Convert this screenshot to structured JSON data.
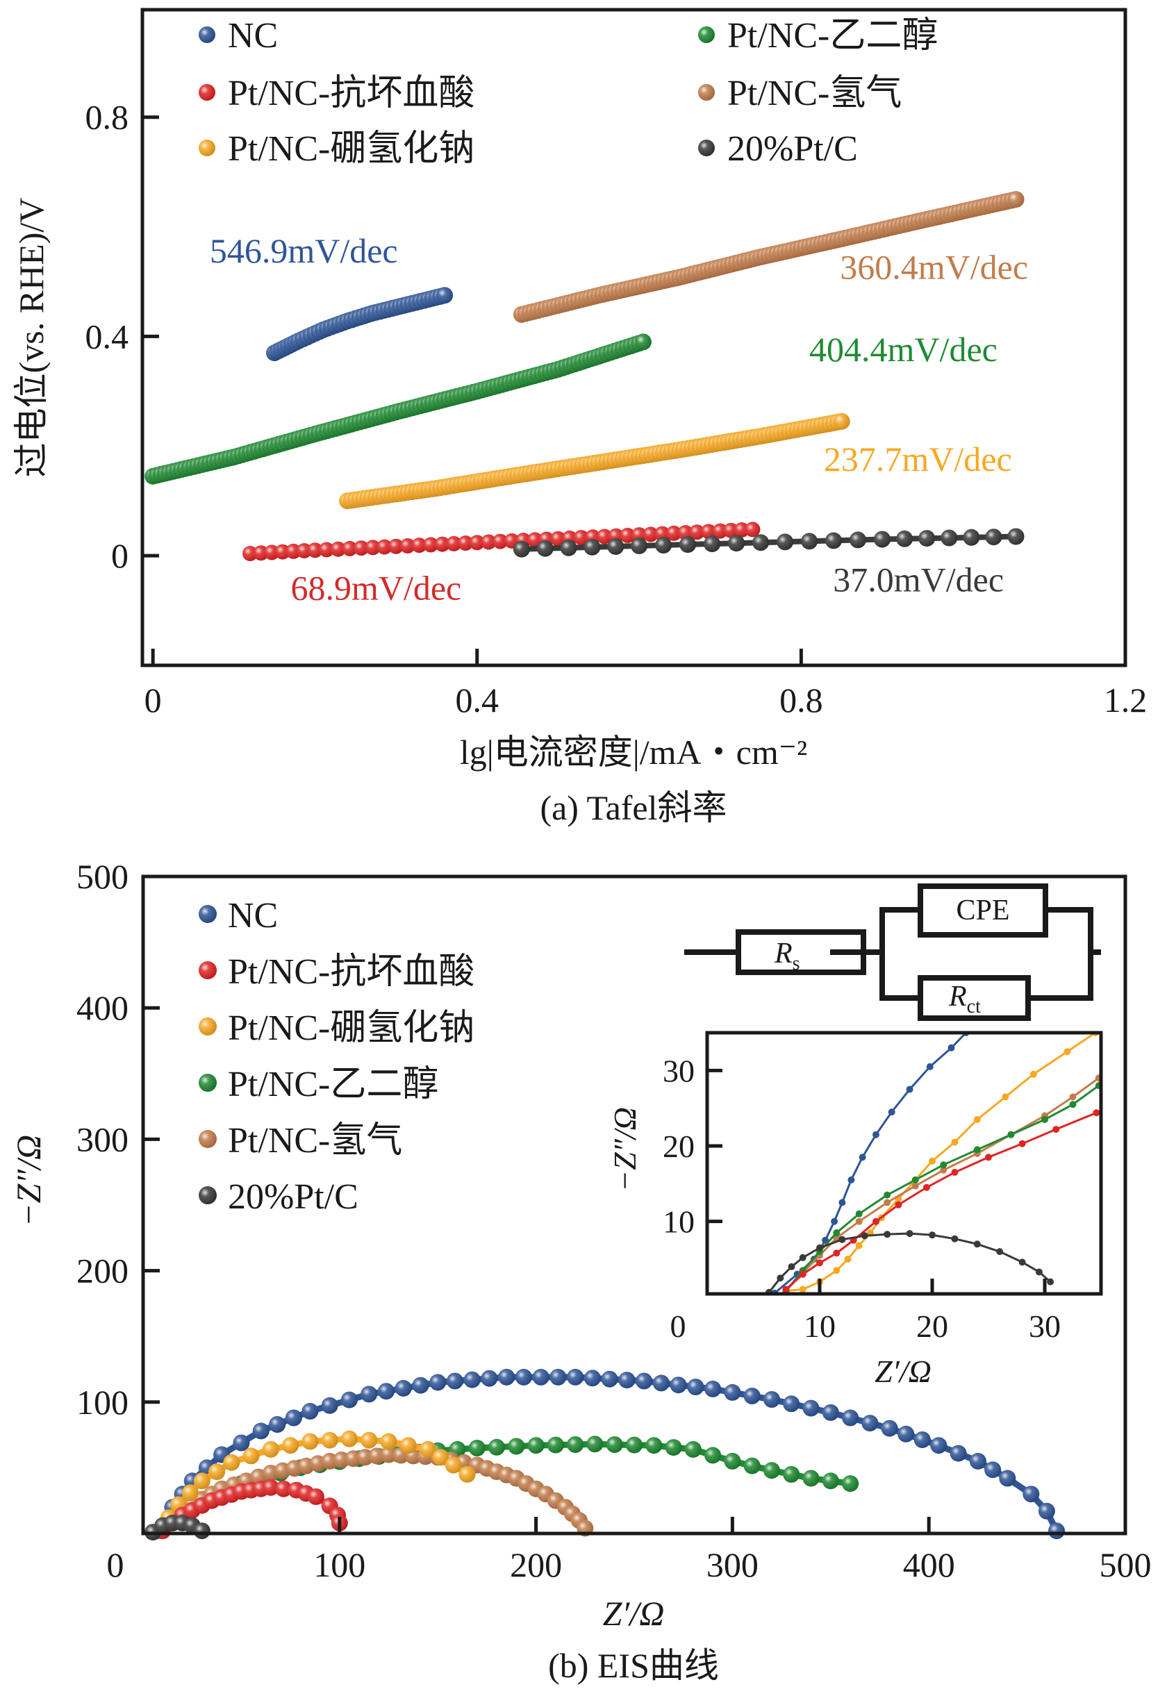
{
  "chart_data": [
    {
      "id": "tafel",
      "type": "scatter",
      "title": "",
      "caption": "(a) Tafel斜率",
      "xlabel": "lg|电流密度|/mA・cm⁻²",
      "ylabel": "过电位(vs. RHE)/V",
      "xlim": [
        -0.013,
        1.2
      ],
      "ylim": [
        -0.2,
        0.996
      ],
      "xticks": [
        0,
        0.4,
        0.8,
        1.2
      ],
      "xtick_labels": [
        "0",
        "0.4",
        "0.8",
        "1.2"
      ],
      "yticks": [
        0,
        0.4,
        0.8
      ],
      "ytick_labels": [
        "0",
        "0.4",
        "0.8"
      ],
      "grid": false,
      "legend": {
        "placement": "top",
        "columns": 2,
        "entries": [
          {
            "label": "NC",
            "color": "#2f5597"
          },
          {
            "label": "Pt/NC-抗坏血酸",
            "color": "#e02424"
          },
          {
            "label": "Pt/NC-硼氢化钠",
            "color": "#f7a823"
          },
          {
            "label": "Pt/NC-乙二醇",
            "color": "#1f8a32"
          },
          {
            "label": "Pt/NC-氢气",
            "color": "#c27c4a"
          },
          {
            "label": "20%Pt/C",
            "color": "#3a3a3a"
          }
        ]
      },
      "series": [
        {
          "name": "NC",
          "color": "#2f5597",
          "slope_label": "546.9mV/dec",
          "x": [
            0.15,
            0.18,
            0.21,
            0.24,
            0.27,
            0.3,
            0.33,
            0.36
          ],
          "y": [
            0.37,
            0.392,
            0.412,
            0.428,
            0.442,
            0.453,
            0.464,
            0.475
          ]
        },
        {
          "name": "Pt/NC-抗坏血酸",
          "color": "#e02424",
          "slope_label": "68.9mV/dec",
          "x": [
            0.12,
            0.2,
            0.3,
            0.4,
            0.5,
            0.6,
            0.7,
            0.74
          ],
          "y": [
            0.004,
            0.01,
            0.017,
            0.024,
            0.031,
            0.038,
            0.045,
            0.048
          ]
        },
        {
          "name": "Pt/NC-硼氢化钠",
          "color": "#f7a823",
          "slope_label": "237.7mV/dec",
          "x": [
            0.24,
            0.35,
            0.45,
            0.55,
            0.65,
            0.75,
            0.85
          ],
          "y": [
            0.1,
            0.123,
            0.147,
            0.17,
            0.193,
            0.218,
            0.245
          ]
        },
        {
          "name": "Pt/NC-乙二醇",
          "color": "#1f8a32",
          "slope_label": "404.4mV/dec",
          "x": [
            0.0,
            0.1,
            0.2,
            0.3,
            0.4,
            0.5,
            0.605
          ],
          "y": [
            0.145,
            0.18,
            0.222,
            0.262,
            0.3,
            0.34,
            0.39
          ]
        },
        {
          "name": "Pt/NC-氢气",
          "color": "#c27c4a",
          "slope_label": "360.4mV/dec",
          "x": [
            0.455,
            0.55,
            0.65,
            0.75,
            0.85,
            0.95,
            1.065
          ],
          "y": [
            0.44,
            0.475,
            0.508,
            0.545,
            0.578,
            0.612,
            0.65
          ]
        },
        {
          "name": "20%Pt/C",
          "color": "#3a3a3a",
          "slope_label": "37.0mV/dec",
          "x": [
            0.455,
            0.6,
            0.75,
            0.9,
            1.065
          ],
          "y": [
            0.012,
            0.018,
            0.024,
            0.03,
            0.035
          ]
        }
      ],
      "annotations": [
        {
          "text": "546.9mV/dec",
          "color": "#2f5597",
          "x": 0.07,
          "y": 0.535
        },
        {
          "text": "360.4mV/dec",
          "color": "#c27c4a",
          "x": 1.08,
          "y": 0.505
        },
        {
          "text": "404.4mV/dec",
          "color": "#1f8a32",
          "x": 0.81,
          "y": 0.355
        },
        {
          "text": "237.7mV/dec",
          "color": "#f7a823",
          "x": 1.06,
          "y": 0.155
        },
        {
          "text": "68.9mV/dec",
          "color": "#d42a2a",
          "x": 0.17,
          "y": -0.08
        },
        {
          "text": "37.0mV/dec",
          "color": "#3a3a3a",
          "x": 1.05,
          "y": -0.065
        }
      ]
    },
    {
      "id": "eis",
      "type": "scatter",
      "title": "",
      "caption": "(b) EIS曲线",
      "xlabel": "Z′/Ω",
      "ylabel": "−Z″/Ω",
      "xlim": [
        0,
        500
      ],
      "ylim": [
        0,
        500
      ],
      "xticks": [
        0,
        100,
        200,
        300,
        400,
        500
      ],
      "xtick_labels": [
        "0",
        "100",
        "200",
        "300",
        "400",
        "500"
      ],
      "yticks": [
        100,
        200,
        300,
        400,
        500
      ],
      "ytick_labels": [
        "100",
        "200",
        "300",
        "400",
        "500"
      ],
      "grid": false,
      "legend": {
        "placement": "top-left",
        "entries": [
          {
            "label": "NC",
            "color": "#2f5597"
          },
          {
            "label": "Pt/NC-抗坏血酸",
            "color": "#e02424"
          },
          {
            "label": "Pt/NC-硼氢化钠",
            "color": "#f7a823"
          },
          {
            "label": "Pt/NC-乙二醇",
            "color": "#1f8a32"
          },
          {
            "label": "Pt/NC-氢气",
            "color": "#c27c4a"
          },
          {
            "label": "20%Pt/C",
            "color": "#3a3a3a"
          }
        ]
      },
      "series": [
        {
          "name": "NC",
          "color": "#2f5597",
          "x": [
            8,
            15,
            25,
            40,
            60,
            85,
            115,
            150,
            185,
            220,
            255,
            290,
            320,
            350,
            380,
            405,
            425,
            440,
            452,
            460,
            465
          ],
          "y": [
            2,
            20,
            40,
            60,
            78,
            93,
            106,
            115,
            119,
            119,
            116,
            110,
            102,
            92,
            80,
            67,
            55,
            42,
            30,
            17,
            2
          ]
        },
        {
          "name": "Pt/NC-抗坏血酸",
          "color": "#e02424",
          "x": [
            10,
            20,
            35,
            50,
            65,
            78,
            88,
            95,
            99,
            100
          ],
          "y": [
            2,
            14,
            25,
            32,
            35,
            33,
            28,
            21,
            14,
            8
          ]
        },
        {
          "name": "Pt/NC-硼氢化钠",
          "color": "#f7a823",
          "x": [
            8,
            18,
            30,
            45,
            65,
            85,
            105,
            125,
            145,
            158,
            165
          ],
          "y": [
            2,
            22,
            40,
            54,
            64,
            70,
            72,
            70,
            64,
            52,
            45
          ]
        },
        {
          "name": "Pt/NC-乙二醇",
          "color": "#1f8a32",
          "x": [
            8,
            25,
            50,
            80,
            110,
            140,
            170,
            200,
            230,
            260,
            280,
            300,
            320,
            340,
            360
          ],
          "y": [
            2,
            22,
            38,
            50,
            57,
            62,
            65,
            67,
            68,
            67,
            64,
            55,
            48,
            42,
            38
          ]
        },
        {
          "name": "Pt/NC-氢气",
          "color": "#c27c4a",
          "x": [
            8,
            20,
            40,
            65,
            95,
            125,
            150,
            170,
            190,
            205,
            215,
            222,
            225
          ],
          "y": [
            2,
            18,
            34,
            46,
            55,
            60,
            58,
            52,
            42,
            30,
            20,
            10,
            4
          ]
        },
        {
          "name": "20%Pt/C",
          "color": "#3a3a3a",
          "x": [
            5,
            10,
            15,
            20,
            25,
            30
          ],
          "y": [
            1,
            6,
            8,
            8,
            6,
            2
          ]
        }
      ],
      "circuit": {
        "elements": [
          "Rs",
          "CPE",
          "Rct"
        ],
        "labels": {
          "rs_main": "R",
          "rs_sub": "s",
          "cpe": "CPE",
          "rct_main": "R",
          "rct_sub": "ct"
        }
      },
      "inset": {
        "type": "line",
        "xlabel": "Z′/Ω",
        "ylabel": "−Z″/Ω",
        "xlim": [
          0,
          35
        ],
        "ylim": [
          0.4,
          35
        ],
        "xticks": [
          0,
          10,
          20,
          30
        ],
        "xtick_labels": [
          "0",
          "10",
          "20",
          "30"
        ],
        "yticks": [
          10,
          20,
          30
        ],
        "ytick_labels": [
          "10",
          "20",
          "30"
        ],
        "series": [
          {
            "name": "NC",
            "color": "#2f5597",
            "x": [
              6,
              8,
              9.5,
              10.5,
              11.3,
              12,
              12.8,
              13.8,
              15,
              16.4,
              18,
              19.8,
              21.7,
              23
            ],
            "y": [
              0.5,
              3,
              5,
              7.5,
              10,
              12.5,
              15.5,
              18.5,
              21.5,
              24.5,
              27.5,
              30.5,
              33,
              35
            ]
          },
          {
            "name": "Pt/NC-抗坏血酸",
            "color": "#e02424",
            "x": [
              7,
              8.5,
              10,
              11.5,
              13,
              15,
              17,
              19.5,
              22,
              25,
              28,
              31,
              34.6
            ],
            "y": [
              1,
              3,
              4.5,
              5.8,
              7.5,
              10,
              12.2,
              14.5,
              16.5,
              18.5,
              20.3,
              22.2,
              24.4
            ]
          },
          {
            "name": "Pt/NC-硼氢化钠",
            "color": "#f7a823",
            "x": [
              7,
              8.5,
              10,
              11.5,
              12.5,
              13.5,
              14.5,
              15.5,
              17,
              18.5,
              20,
              22,
              24,
              26.5,
              29,
              32,
              34.5
            ],
            "y": [
              0.8,
              1,
              2,
              3.5,
              5,
              6.8,
              8.5,
              10.5,
              13,
              15.5,
              18,
              20.5,
              23.5,
              26.5,
              29.5,
              32.5,
              35
            ]
          },
          {
            "name": "Pt/NC-乙二醇",
            "color": "#1f8a32",
            "x": [
              7,
              8.5,
              10,
              11.5,
              13.5,
              16,
              18.5,
              21,
              24,
              27,
              30,
              32.5,
              34.8
            ],
            "y": [
              0.8,
              3.5,
              6,
              8.5,
              11,
              13.5,
              15.5,
              17.5,
              19.5,
              21.5,
              23.5,
              25.5,
              28
            ]
          },
          {
            "name": "Pt/NC-氢气",
            "color": "#c27c4a",
            "x": [
              7,
              8.5,
              10,
              11.5,
              13.5,
              16,
              18.5,
              21,
              24,
              27,
              30,
              32.5,
              34.8
            ],
            "y": [
              0.8,
              3.2,
              5.5,
              7.8,
              10,
              12.5,
              14.7,
              16.8,
              19,
              21.5,
              24,
              26.5,
              29
            ]
          },
          {
            "name": "20%Pt/C",
            "color": "#3a3a3a",
            "x": [
              5.5,
              6.5,
              7.5,
              8.5,
              10,
              12,
              14,
              16,
              18,
              20,
              22,
              24,
              26,
              28,
              29.5,
              30.5
            ],
            "y": [
              0.6,
              2.5,
              4,
              5.2,
              6.5,
              7.6,
              8.1,
              8.3,
              8.4,
              8.2,
              7.7,
              7,
              6,
              4.6,
              3.3,
              2
            ]
          }
        ]
      }
    }
  ]
}
